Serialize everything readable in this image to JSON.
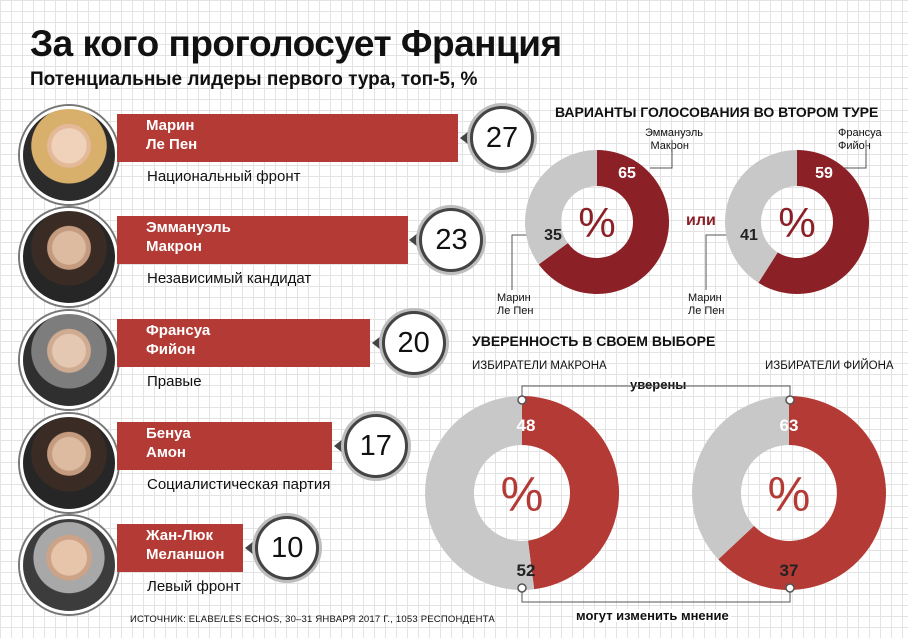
{
  "header": {
    "title": "За кого проголосует Франция",
    "subtitle": "Потенциальные лидеры первого тура, топ-5, %"
  },
  "colors": {
    "accent": "#b43a35",
    "dark_red": "#8b2027",
    "grey": "#c8c8c8"
  },
  "chart_data": [
    {
      "type": "bar",
      "title": "Потенциальные лидеры первого тура, топ-5, %",
      "categories": [
        "Марин\nЛе Пен",
        "Эммануэль\nМакрон",
        "Франсуа\nФийон",
        "Бенуа\nАмон",
        "Жан-Люк\nМеланшон"
      ],
      "values": [
        27,
        23,
        20,
        17,
        10
      ],
      "parties": [
        "Национальный фронт",
        "Независимый кандидат",
        "Правые",
        "Социалистическая партия",
        "Левый фронт"
      ],
      "xlim": [
        0,
        27
      ]
    },
    {
      "type": "pie",
      "title": "ВАРИАНТЫ ГОЛОСОВАНИЯ ВО ВТОРОМ ТУРЕ",
      "connector": "или",
      "center_label": "%",
      "charts": [
        {
          "slices": [
            {
              "label": "Эммануэль\nМакрон",
              "value": 65
            },
            {
              "label": "Марин\nЛе Пен",
              "value": 35
            }
          ]
        },
        {
          "slices": [
            {
              "label": "Франсуа\nФийон",
              "value": 59
            },
            {
              "label": "Марин\nЛе Пен",
              "value": 41
            }
          ]
        }
      ]
    },
    {
      "type": "pie",
      "title": "УВЕРЕННОСТЬ В СВОЕМ ВЫБОРЕ",
      "center_label": "%",
      "legend": {
        "sure": "уверены",
        "may_change": "могут изменить мнение"
      },
      "charts": [
        {
          "name": "ИЗБИРАТЕЛИ МАКРОНА",
          "slices": [
            {
              "label": "уверены",
              "value": 48
            },
            {
              "label": "могут изменить мнение",
              "value": 52
            }
          ]
        },
        {
          "name": "ИЗБИРАТЕЛИ ФИЙОНА",
          "slices": [
            {
              "label": "уверены",
              "value": 63
            },
            {
              "label": "могут изменить мнение",
              "value": 37
            }
          ]
        }
      ]
    }
  ],
  "source": "ИСТОЧНИК: ELABE/LES ECHOS, 30–31 ЯНВАРЯ 2017 Г., 1053 РЕСПОНДЕНТА"
}
